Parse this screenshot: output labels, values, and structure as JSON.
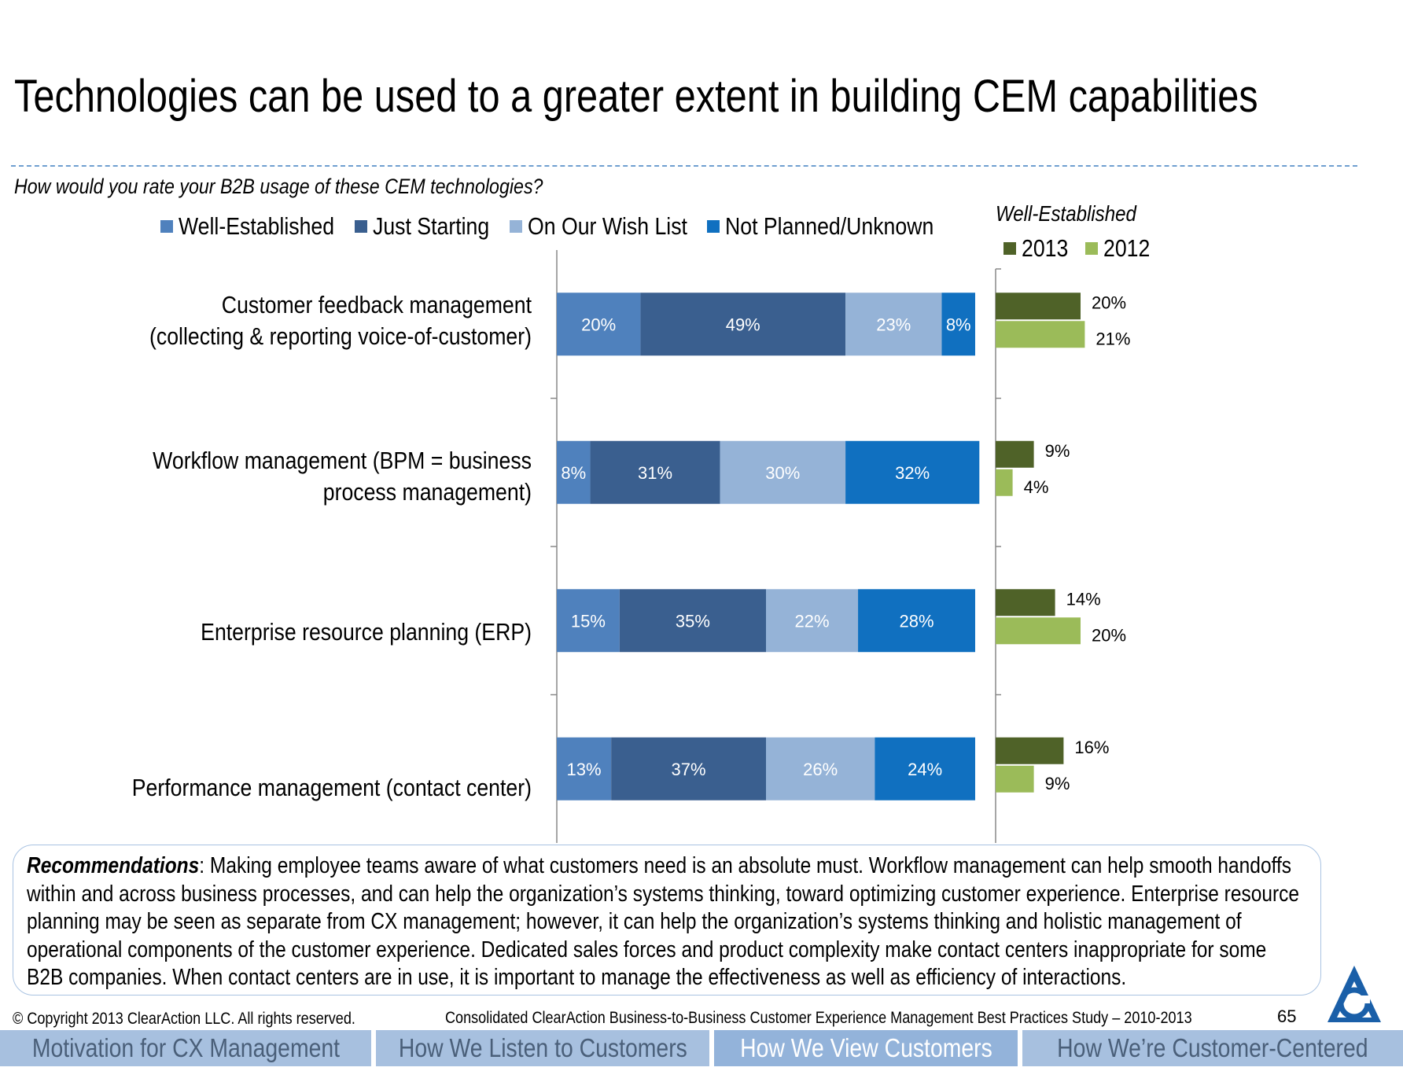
{
  "slide": {
    "title": "Technologies can be used to a greater extent in building CEM capabilities",
    "question": "How would you rate your B2B usage of these CEM technologies?"
  },
  "recommendations": {
    "label": "Recommendations",
    "text": ": Making employee teams aware of what customers need is an absolute must. Workflow management can help smooth handoffs within and across business processes, and can help the organization’s systems thinking, toward optimizing customer experience.  Enterprise resource planning may be seen as separate from CX management; however, it can help the organization’s systems thinking and holistic management of operational components of the customer experience. Dedicated sales forces and product complexity make contact centers inappropriate for some B2B companies.  When contact centers are in use, it is important to manage the effectiveness as well as efficiency of interactions."
  },
  "footer": {
    "copyright": "© Copyright 2013 ClearAction LLC. All rights reserved.",
    "study": "Consolidated ClearAction Business-to-Business Customer Experience Management Best Practices Study – 2010-2013",
    "page_number": "65",
    "logo_icon": "clearaction-logo-icon"
  },
  "nav": {
    "tabs": [
      {
        "label": "Motivation for CX Management",
        "active": false
      },
      {
        "label": "How We Listen to Customers",
        "active": false
      },
      {
        "label": "How We View Customers",
        "active": true
      },
      {
        "label": "How We’re Customer-Centered",
        "active": false
      }
    ]
  },
  "colors": {
    "well_established": "#4f81bd",
    "just_starting": "#3a5f8f",
    "wish_list": "#95b3d7",
    "not_planned": "#1070c0",
    "y2013": "#4f6228",
    "y2012": "#9bbb59"
  },
  "chart_data": [
    {
      "type": "bar",
      "orientation": "horizontal",
      "stacked": true,
      "categories": [
        "Customer feedback management\n(collecting & reporting voice-of-customer)",
        "Workflow management (BPM = business\nprocess management)",
        "Enterprise resource planning (ERP)",
        "Performance management (contact center)"
      ],
      "series": [
        {
          "name": "Well-Established",
          "values": [
            20,
            8,
            15,
            13
          ],
          "labels": [
            "20%",
            "8%",
            "15%",
            "13%"
          ]
        },
        {
          "name": "Just Starting",
          "values": [
            49,
            31,
            35,
            37
          ],
          "labels": [
            "49%",
            "31%",
            "35%",
            "37%"
          ]
        },
        {
          "name": "On Our Wish List",
          "values": [
            23,
            30,
            22,
            26
          ],
          "labels": [
            "23%",
            "30%",
            "22%",
            "26%"
          ]
        },
        {
          "name": "Not Planned/Unknown",
          "values": [
            8,
            32,
            28,
            24
          ],
          "labels": [
            "8%",
            "32%",
            "28%",
            "24%"
          ]
        }
      ],
      "xlim": [
        0,
        100
      ],
      "legend": "top"
    },
    {
      "type": "bar",
      "orientation": "horizontal",
      "title": "Well-Established",
      "categories": [
        "Customer feedback management\n(collecting & reporting voice-of-customer)",
        "Workflow management (BPM = business\nprocess management)",
        "Enterprise resource planning (ERP)",
        "Performance management (contact center)"
      ],
      "series": [
        {
          "name": "2013",
          "values": [
            20,
            9,
            14,
            16
          ],
          "labels": [
            "20%",
            "9%",
            "14%",
            "16%"
          ]
        },
        {
          "name": "2012",
          "values": [
            21,
            4,
            20,
            9
          ],
          "labels": [
            "21%",
            "4%",
            "20%",
            "9%"
          ]
        }
      ],
      "xlim": [
        0,
        100
      ],
      "legend": "top"
    }
  ]
}
